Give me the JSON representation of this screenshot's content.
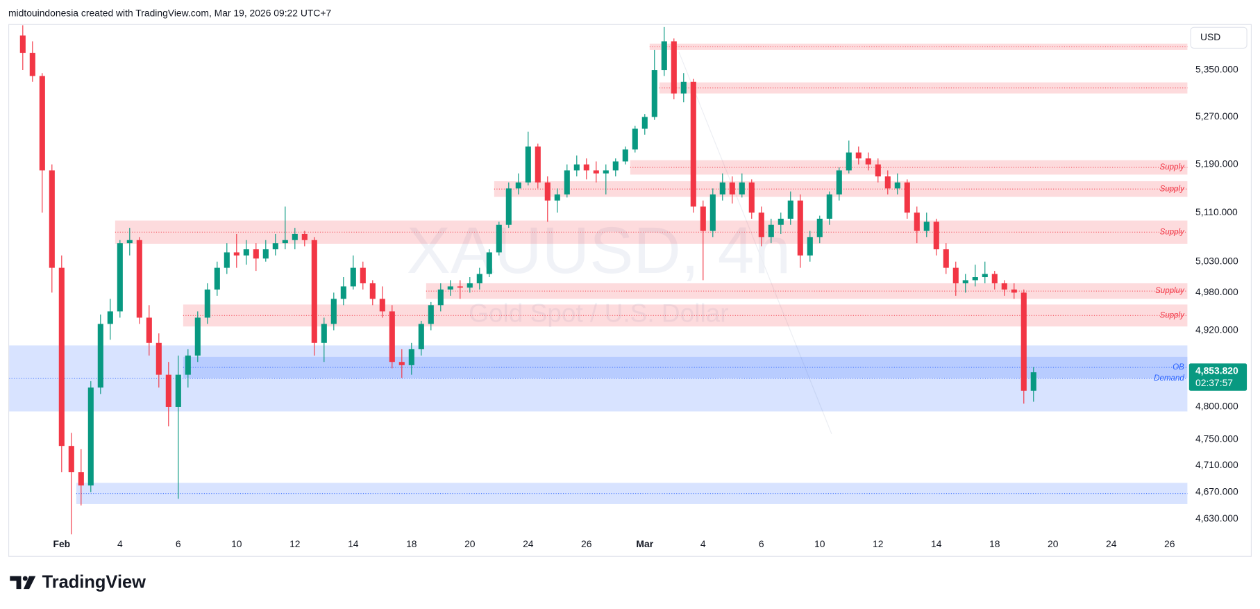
{
  "header": "midtouindonesia created with TradingView.com, Mar 19, 2026 09:22 UTC+7",
  "footer": {
    "brand": "TradingView"
  },
  "chart_data": {
    "type": "candlestick",
    "title": "XAUUSD, 4h",
    "subtitle": "Gold Spot / U.S. Dollar",
    "currency": "USD",
    "log_scale": true,
    "grid": false,
    "up_color": "#089981",
    "down_color": "#f23645",
    "ylim": [
      4607,
      5430
    ],
    "yticks": [
      {
        "value": 5350,
        "label": "5,350.000"
      },
      {
        "value": 5270,
        "label": "5,270.000"
      },
      {
        "value": 5190,
        "label": "5,190.000"
      },
      {
        "value": 5110,
        "label": "5,110.000"
      },
      {
        "value": 5030,
        "label": "5,030.000"
      },
      {
        "value": 4980,
        "label": "4,980.000"
      },
      {
        "value": 4920,
        "label": "4,920.000"
      },
      {
        "value": 4800,
        "label": "4,800.000"
      },
      {
        "value": 4750,
        "label": "4,750.000"
      },
      {
        "value": 4710,
        "label": "4,710.000"
      },
      {
        "value": 4670,
        "label": "4,670.000"
      },
      {
        "value": 4630,
        "label": "4,630.000"
      }
    ],
    "categories": [
      null,
      null,
      null,
      null,
      "Feb",
      null,
      null,
      null,
      null,
      null,
      "4",
      null,
      null,
      null,
      null,
      null,
      "6",
      null,
      null,
      null,
      null,
      null,
      "10",
      null,
      null,
      null,
      null,
      null,
      "12",
      null,
      null,
      null,
      null,
      null,
      "14",
      null,
      null,
      null,
      null,
      null,
      "18",
      null,
      null,
      null,
      null,
      null,
      "20",
      null,
      null,
      null,
      null,
      null,
      "24",
      null,
      null,
      null,
      null,
      null,
      "26",
      null,
      null,
      null,
      null,
      null,
      "Mar",
      null,
      null,
      null,
      null,
      null,
      "4",
      null,
      null,
      null,
      null,
      null,
      "6",
      null,
      null,
      null,
      null,
      null,
      "10",
      null,
      null,
      null,
      null,
      null,
      "12",
      null,
      null,
      null,
      null,
      null,
      "14",
      null,
      null,
      null,
      null,
      null,
      "18",
      null,
      null,
      null,
      null,
      null,
      "20",
      null,
      null,
      null,
      null,
      null,
      "24",
      null,
      null,
      null,
      null,
      null,
      "26",
      null
    ],
    "open": [
      5410,
      5380,
      5340,
      5180,
      5020,
      4740,
      4700,
      4680,
      4830,
      4930,
      4950,
      5060,
      5065,
      4940,
      4900,
      4850,
      4800,
      4850,
      4880,
      4940,
      4985,
      5020,
      5045,
      5040,
      5050,
      5035,
      5050,
      5060,
      5065,
      5075,
      5065,
      4900,
      4930,
      4970,
      4990,
      5020,
      4995,
      4970,
      4950,
      4870,
      4865,
      4890,
      4930,
      4960,
      4985,
      4990,
      4988,
      4995,
      5010,
      5045,
      5090,
      5150,
      5160,
      5220,
      5160,
      5130,
      5140,
      5180,
      5190,
      5180,
      5175,
      5180,
      5195,
      5215,
      5250,
      5270,
      5350,
      5400,
      5310,
      5330,
      5120,
      5080,
      5140,
      5160,
      5140,
      5160,
      5110,
      5070,
      5090,
      5100,
      5130,
      5040,
      5070,
      5100,
      5140,
      5180,
      5210,
      5200,
      5190,
      5170,
      5150,
      5160,
      5110,
      5080,
      5095,
      5050,
      5020,
      4995,
      5000,
      5005,
      5010,
      4995,
      4985,
      4980,
      4825,
      null,
      null,
      null,
      null,
      null,
      null,
      null,
      null,
      null,
      null,
      null,
      null,
      null,
      null,
      null
    ],
    "high": [
      5428,
      5400,
      5345,
      5190,
      5040,
      4760,
      4735,
      4840,
      4945,
      4970,
      5065,
      5085,
      5070,
      4960,
      4915,
      4870,
      4880,
      4890,
      4950,
      4995,
      5030,
      5060,
      5075,
      5065,
      5060,
      5065,
      5075,
      5120,
      5085,
      5080,
      5070,
      4940,
      4980,
      5005,
      5040,
      5030,
      5000,
      4990,
      4960,
      4890,
      4900,
      4935,
      4965,
      4995,
      5000,
      5000,
      5005,
      5020,
      5050,
      5095,
      5160,
      5175,
      5245,
      5225,
      5170,
      5150,
      5190,
      5205,
      5200,
      5195,
      5190,
      5200,
      5220,
      5255,
      5275,
      5385,
      5425,
      5405,
      5345,
      5335,
      5130,
      5150,
      5175,
      5170,
      5175,
      5165,
      5120,
      5100,
      5110,
      5145,
      5140,
      5080,
      5105,
      5145,
      5185,
      5230,
      5220,
      5210,
      5200,
      5180,
      5175,
      5165,
      5120,
      5110,
      5100,
      5060,
      5030,
      5010,
      5025,
      5030,
      5015,
      5000,
      4995,
      4985,
      4862,
      null,
      null,
      null,
      null,
      null,
      null,
      null,
      null,
      null,
      null,
      null,
      null,
      null,
      null,
      null
    ],
    "low": [
      5350,
      5330,
      5110,
      4980,
      4700,
      4605,
      4650,
      4670,
      4820,
      4905,
      4940,
      5040,
      4930,
      4880,
      4830,
      4770,
      4660,
      4830,
      4870,
      4930,
      4975,
      5010,
      5020,
      5025,
      5015,
      5030,
      5040,
      5050,
      5050,
      5055,
      4880,
      4870,
      4920,
      4960,
      4985,
      4985,
      4960,
      4940,
      4860,
      4845,
      4850,
      4880,
      4920,
      4950,
      4975,
      4970,
      4980,
      4985,
      5005,
      5040,
      5085,
      5140,
      5155,
      5150,
      5095,
      5110,
      5135,
      5170,
      5165,
      5160,
      5140,
      5170,
      5190,
      5210,
      5240,
      5265,
      5340,
      5300,
      5295,
      5110,
      5000,
      5070,
      5130,
      5125,
      5135,
      5100,
      5055,
      5060,
      5075,
      5090,
      5020,
      5030,
      5060,
      5090,
      5130,
      5175,
      5190,
      5180,
      5160,
      5140,
      5140,
      5100,
      5060,
      5070,
      5040,
      5010,
      4975,
      4980,
      4990,
      4995,
      4985,
      4975,
      4970,
      4805,
      4808,
      null,
      null,
      null,
      null,
      null,
      null,
      null,
      null,
      null,
      null,
      null,
      null,
      null,
      null,
      null
    ],
    "close": [
      5380,
      5340,
      5180,
      5020,
      4740,
      4700,
      4680,
      4830,
      4930,
      4950,
      5060,
      5065,
      4940,
      4900,
      4850,
      4800,
      4850,
      4880,
      4940,
      4985,
      5020,
      5045,
      5040,
      5050,
      5035,
      5050,
      5060,
      5065,
      5075,
      5065,
      4900,
      4930,
      4970,
      4990,
      5020,
      4995,
      4970,
      4950,
      4870,
      4865,
      4890,
      4930,
      4960,
      4985,
      4990,
      4988,
      4995,
      5010,
      5045,
      5090,
      5150,
      5160,
      5220,
      5160,
      5130,
      5140,
      5180,
      5190,
      5180,
      5175,
      5180,
      5195,
      5215,
      5250,
      5270,
      5350,
      5400,
      5310,
      5330,
      5120,
      5080,
      5140,
      5160,
      5140,
      5160,
      5110,
      5070,
      5090,
      5100,
      5130,
      5040,
      5070,
      5100,
      5140,
      5180,
      5210,
      5200,
      5190,
      5170,
      5150,
      5160,
      5110,
      5080,
      5095,
      5050,
      5020,
      4995,
      5000,
      5005,
      5010,
      4995,
      4985,
      4980,
      4825,
      4853.82,
      null,
      null,
      null,
      null,
      null,
      null,
      null,
      null,
      null,
      null,
      null,
      null,
      null,
      null,
      null
    ],
    "last_price": {
      "value": 4853.82,
      "label": "4,853.820",
      "countdown": "02:37:57"
    },
    "zones": [
      {
        "from": 5396,
        "to": 5385,
        "start": 65,
        "color": "#f23645"
      },
      {
        "from": 5329,
        "to": 5310,
        "start": 66,
        "color": "#f23645"
      },
      {
        "label": "Supply",
        "from": 5197,
        "to": 5173,
        "start": 63,
        "color": "#f23645"
      },
      {
        "label": "Supply",
        "from": 5162,
        "to": 5136,
        "start": 49,
        "color": "#f23645"
      },
      {
        "label": "Supply",
        "from": 5097,
        "to": 5059,
        "start": 10,
        "color": "#f23645"
      },
      {
        "label": "Suppluy",
        "from": 4995,
        "to": 4970,
        "start": 42,
        "color": "#f23645"
      },
      {
        "label": "Supply",
        "from": 4961,
        "to": 4926,
        "start": 17,
        "color": "#f23645"
      },
      {
        "label": "Demand",
        "from": 4896,
        "to": 4793,
        "start": 0,
        "color": "#2962ff"
      },
      {
        "label": "OB",
        "from": 4878,
        "to": 4845,
        "start": 17,
        "color": "#2962ff"
      },
      {
        "from": 4684,
        "to": 4652,
        "start": 6,
        "color": "#2962ff"
      }
    ]
  }
}
